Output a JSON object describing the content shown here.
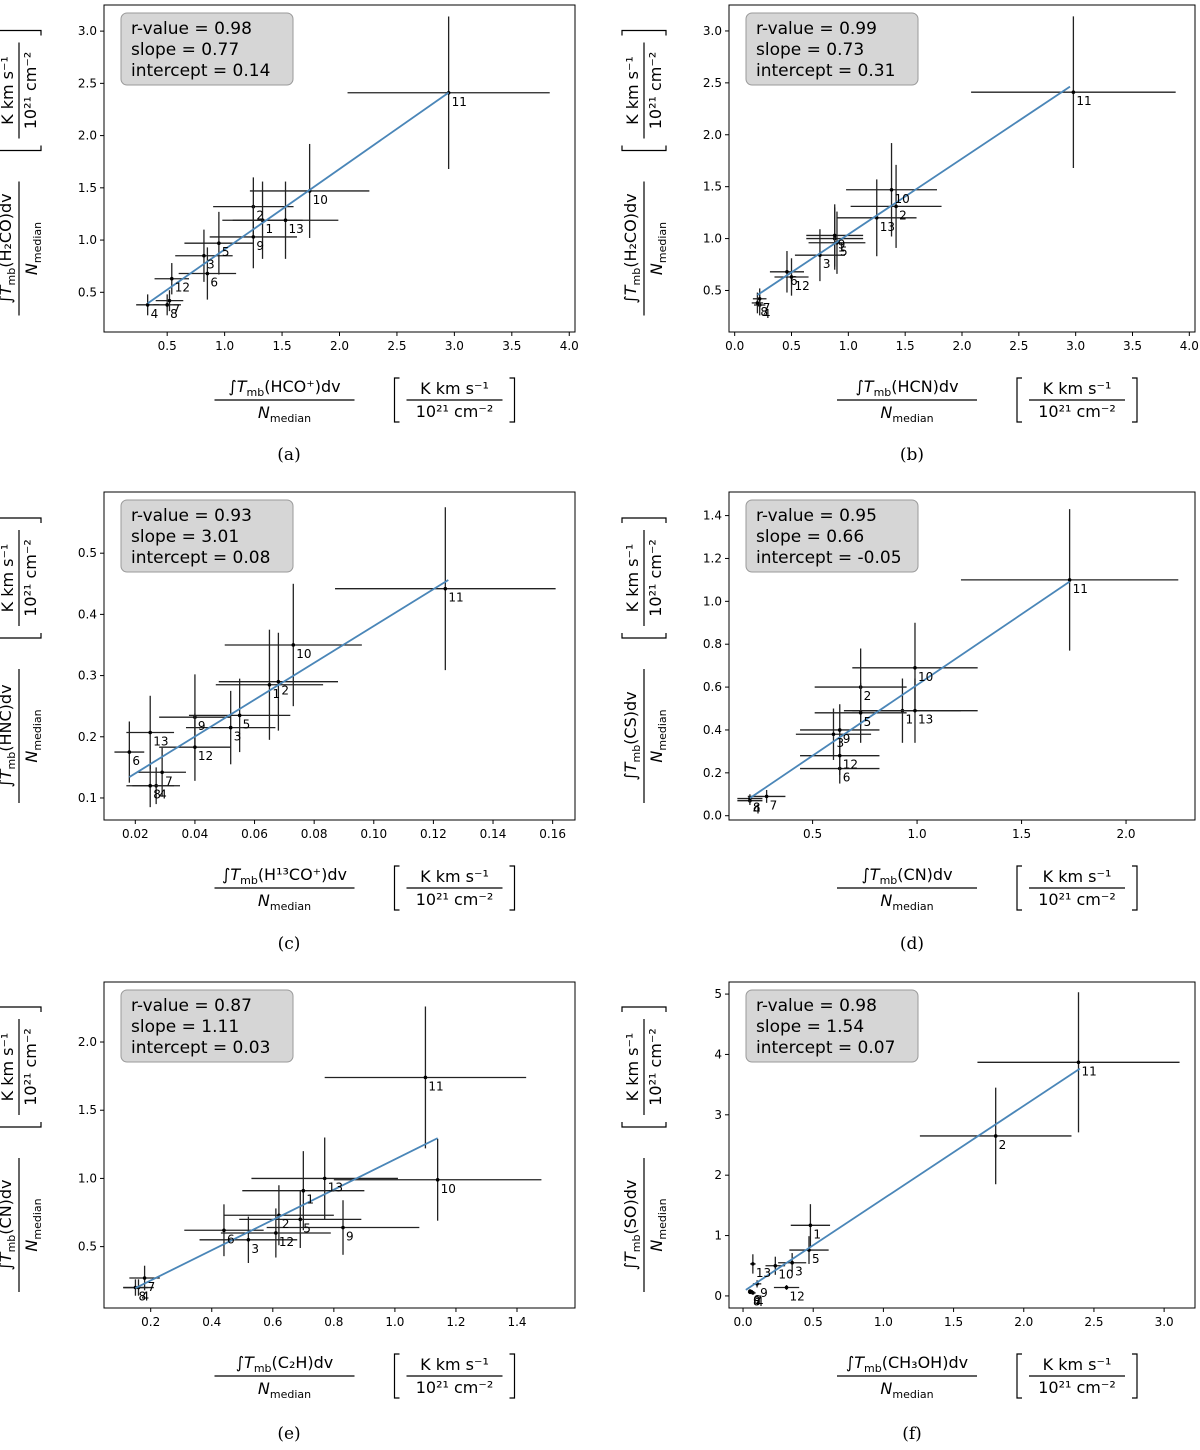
{
  "units_top": "K km s⁻¹",
  "units_bottom": "10²¹ cm⁻²",
  "y_denominator": "N",
  "y_denominator_sub": "median",
  "chart_data": [
    {
      "type": "scatter",
      "caption": "(a)",
      "stats": {
        "r": "r-value =  0.98",
        "slope": "slope = 0.77",
        "intercept": "intercept = 0.14"
      },
      "xlabel": {
        "pre": "∫T",
        "sub": "mb",
        "species": "(HCO⁺)dv"
      },
      "ylabel": {
        "pre": "∫T",
        "sub": "mb",
        "species": "(H₂CO)dv"
      },
      "xlim": [
        -0.05,
        4.05
      ],
      "ylim": [
        0.12,
        3.25
      ],
      "xticks": [
        0.5,
        1.0,
        1.5,
        2.0,
        2.5,
        3.0,
        3.5,
        4.0
      ],
      "xtick_labels": [
        "0.5",
        "1.0",
        "1.5",
        "2.0",
        "2.5",
        "3.0",
        "3.5",
        "4.0"
      ],
      "yticks": [
        0.5,
        1.0,
        1.5,
        2.0,
        2.5,
        3.0
      ],
      "ytick_labels": [
        "0.5",
        "1.0",
        "1.5",
        "2.0",
        "2.5",
        "3.0"
      ],
      "fit": {
        "slope": 0.77,
        "intercept": 0.14,
        "x_range": [
          0.33,
          2.95
        ]
      },
      "points": [
        {
          "label": "1",
          "x": 1.33,
          "y": 1.19,
          "xerr": 0.35,
          "yerr": 0.37
        },
        {
          "label": "2",
          "x": 1.25,
          "y": 1.32,
          "xerr": 0.35,
          "yerr": 0.28
        },
        {
          "label": "3",
          "x": 0.82,
          "y": 0.85,
          "xerr": 0.25,
          "yerr": 0.25
        },
        {
          "label": "4",
          "x": 0.33,
          "y": 0.38,
          "xerr": 0.1,
          "yerr": 0.1
        },
        {
          "label": "5",
          "x": 0.95,
          "y": 0.97,
          "xerr": 0.3,
          "yerr": 0.3
        },
        {
          "label": "6",
          "x": 0.85,
          "y": 0.68,
          "xerr": 0.25,
          "yerr": 0.25
        },
        {
          "label": "7",
          "x": 0.52,
          "y": 0.42,
          "xerr": 0.12,
          "yerr": 0.1
        },
        {
          "label": "8",
          "x": 0.5,
          "y": 0.38,
          "xerr": 0.12,
          "yerr": 0.1
        },
        {
          "label": "9",
          "x": 1.25,
          "y": 1.03,
          "xerr": 0.38,
          "yerr": 0.3
        },
        {
          "label": "10",
          "x": 1.74,
          "y": 1.47,
          "xerr": 0.52,
          "yerr": 0.45
        },
        {
          "label": "11",
          "x": 2.95,
          "y": 2.41,
          "xerr": 0.88,
          "yerr": 0.73
        },
        {
          "label": "12",
          "x": 0.54,
          "y": 0.63,
          "xerr": 0.15,
          "yerr": 0.15
        },
        {
          "label": "13",
          "x": 1.53,
          "y": 1.19,
          "xerr": 0.46,
          "yerr": 0.37
        }
      ]
    },
    {
      "type": "scatter",
      "caption": "(b)",
      "stats": {
        "r": "r-value =  0.99",
        "slope": "slope = 0.73",
        "intercept": "intercept = 0.31"
      },
      "xlabel": {
        "pre": "∫T",
        "sub": "mb",
        "species": "(HCN)dv"
      },
      "ylabel": {
        "pre": "∫T",
        "sub": "mb",
        "species": "(H₂CO)dv"
      },
      "xlim": [
        -0.05,
        4.05
      ],
      "ylim": [
        0.1,
        3.25
      ],
      "xticks": [
        0.0,
        0.5,
        1.0,
        1.5,
        2.0,
        2.5,
        3.0,
        3.5,
        4.0
      ],
      "xtick_labels": [
        "0.0",
        "0.5",
        "1.0",
        "1.5",
        "2.0",
        "2.5",
        "3.0",
        "3.5",
        "4.0"
      ],
      "yticks": [
        0.5,
        1.0,
        1.5,
        2.0,
        2.5,
        3.0
      ],
      "ytick_labels": [
        "0.5",
        "1.0",
        "1.5",
        "2.0",
        "2.5",
        "3.0"
      ],
      "fit": {
        "slope": 0.73,
        "intercept": 0.31,
        "x_range": [
          0.2,
          2.95
        ]
      },
      "points": [
        {
          "label": "1",
          "x": 0.88,
          "y": 1.0,
          "xerr": 0.25,
          "yerr": 0.3
        },
        {
          "label": "2",
          "x": 1.42,
          "y": 1.31,
          "xerr": 0.4,
          "yerr": 0.4
        },
        {
          "label": "3",
          "x": 0.75,
          "y": 0.84,
          "xerr": 0.22,
          "yerr": 0.25
        },
        {
          "label": "4",
          "x": 0.22,
          "y": 0.36,
          "xerr": 0.05,
          "yerr": 0.1
        },
        {
          "label": "5",
          "x": 0.9,
          "y": 0.96,
          "xerr": 0.25,
          "yerr": 0.3
        },
        {
          "label": "6",
          "x": 0.46,
          "y": 0.68,
          "xerr": 0.15,
          "yerr": 0.2
        },
        {
          "label": "7",
          "x": 0.22,
          "y": 0.42,
          "xerr": 0.06,
          "yerr": 0.1
        },
        {
          "label": "8",
          "x": 0.2,
          "y": 0.38,
          "xerr": 0.05,
          "yerr": 0.1
        },
        {
          "label": "9",
          "x": 0.88,
          "y": 1.03,
          "xerr": 0.25,
          "yerr": 0.3
        },
        {
          "label": "10",
          "x": 1.38,
          "y": 1.47,
          "xerr": 0.4,
          "yerr": 0.45
        },
        {
          "label": "11",
          "x": 2.98,
          "y": 2.41,
          "xerr": 0.9,
          "yerr": 0.73
        },
        {
          "label": "12",
          "x": 0.5,
          "y": 0.63,
          "xerr": 0.15,
          "yerr": 0.18
        },
        {
          "label": "13",
          "x": 1.25,
          "y": 1.2,
          "xerr": 0.35,
          "yerr": 0.37
        }
      ]
    },
    {
      "type": "scatter",
      "caption": "(c)",
      "stats": {
        "r": "r-value =  0.93",
        "slope": "slope = 3.01",
        "intercept": "intercept = 0.08"
      },
      "xlabel": {
        "pre": "∫T",
        "sub": "mb",
        "species": "(H¹³CO⁺)dv"
      },
      "ylabel": {
        "pre": "∫T",
        "sub": "mb",
        "species": "(HNC)dv"
      },
      "xlim": [
        0.0095,
        0.1675
      ],
      "ylim": [
        0.064,
        0.6
      ],
      "xticks": [
        0.02,
        0.04,
        0.06,
        0.08,
        0.1,
        0.12,
        0.14,
        0.16
      ],
      "xtick_labels": [
        "0.02",
        "0.04",
        "0.06",
        "0.08",
        "0.10",
        "0.12",
        "0.14",
        "0.16"
      ],
      "yticks": [
        0.1,
        0.2,
        0.3,
        0.4,
        0.5
      ],
      "ytick_labels": [
        "0.1",
        "0.2",
        "0.3",
        "0.4",
        "0.5"
      ],
      "fit": {
        "slope": 3.01,
        "intercept": 0.08,
        "x_range": [
          0.018,
          0.125
        ]
      },
      "points": [
        {
          "label": "1",
          "x": 0.065,
          "y": 0.285,
          "xerr": 0.018,
          "yerr": 0.09
        },
        {
          "label": "2",
          "x": 0.068,
          "y": 0.29,
          "xerr": 0.02,
          "yerr": 0.08
        },
        {
          "label": "3",
          "x": 0.052,
          "y": 0.215,
          "xerr": 0.015,
          "yerr": 0.06
        },
        {
          "label": "4",
          "x": 0.027,
          "y": 0.12,
          "xerr": 0.008,
          "yerr": 0.03
        },
        {
          "label": "5",
          "x": 0.055,
          "y": 0.235,
          "xerr": 0.017,
          "yerr": 0.06
        },
        {
          "label": "6",
          "x": 0.018,
          "y": 0.175,
          "xerr": 0.005,
          "yerr": 0.05
        },
        {
          "label": "7",
          "x": 0.029,
          "y": 0.142,
          "xerr": 0.008,
          "yerr": 0.04
        },
        {
          "label": "8",
          "x": 0.025,
          "y": 0.12,
          "xerr": 0.008,
          "yerr": 0.035
        },
        {
          "label": "9",
          "x": 0.04,
          "y": 0.232,
          "xerr": 0.012,
          "yerr": 0.07
        },
        {
          "label": "10",
          "x": 0.073,
          "y": 0.35,
          "xerr": 0.023,
          "yerr": 0.1
        },
        {
          "label": "11",
          "x": 0.124,
          "y": 0.442,
          "xerr": 0.037,
          "yerr": 0.133
        },
        {
          "label": "12",
          "x": 0.04,
          "y": 0.183,
          "xerr": 0.012,
          "yerr": 0.055
        },
        {
          "label": "13",
          "x": 0.025,
          "y": 0.207,
          "xerr": 0.008,
          "yerr": 0.06
        }
      ]
    },
    {
      "type": "scatter",
      "caption": "(d)",
      "stats": {
        "r": "r-value =  0.95",
        "slope": "slope = 0.66",
        "intercept": "intercept = -0.05"
      },
      "xlabel": {
        "pre": "∫T",
        "sub": "mb",
        "species": "(CN)dv"
      },
      "ylabel": {
        "pre": "∫T",
        "sub": "mb",
        "species": "(CS)dv"
      },
      "xlim": [
        0.1,
        2.33
      ],
      "ylim": [
        -0.02,
        1.51
      ],
      "xticks": [
        0.5,
        1.0,
        1.5,
        2.0
      ],
      "xtick_labels": [
        "0.5",
        "1.0",
        "1.5",
        "2.0"
      ],
      "yticks": [
        0.0,
        0.2,
        0.4,
        0.6,
        0.8,
        1.0,
        1.2,
        1.4
      ],
      "ytick_labels": [
        "0.0",
        "0.2",
        "0.4",
        "0.6",
        "0.8",
        "1.0",
        "1.2",
        "1.4"
      ],
      "fit": {
        "slope": 0.66,
        "intercept": -0.05,
        "x_range": [
          0.2,
          1.73
        ]
      },
      "points": [
        {
          "label": "1",
          "x": 0.93,
          "y": 0.49,
          "xerr": 0.28,
          "yerr": 0.15
        },
        {
          "label": "2",
          "x": 0.73,
          "y": 0.6,
          "xerr": 0.22,
          "yerr": 0.18
        },
        {
          "label": "3",
          "x": 0.6,
          "y": 0.38,
          "xerr": 0.18,
          "yerr": 0.12
        },
        {
          "label": "4",
          "x": 0.2,
          "y": 0.07,
          "xerr": 0.06,
          "yerr": 0.02
        },
        {
          "label": "5",
          "x": 0.73,
          "y": 0.48,
          "xerr": 0.22,
          "yerr": 0.14
        },
        {
          "label": "6",
          "x": 0.63,
          "y": 0.22,
          "xerr": 0.19,
          "yerr": 0.07
        },
        {
          "label": "7",
          "x": 0.28,
          "y": 0.09,
          "xerr": 0.09,
          "yerr": 0.03
        },
        {
          "label": "8",
          "x": 0.2,
          "y": 0.08,
          "xerr": 0.06,
          "yerr": 0.02
        },
        {
          "label": "9",
          "x": 0.63,
          "y": 0.4,
          "xerr": 0.19,
          "yerr": 0.12
        },
        {
          "label": "10",
          "x": 0.99,
          "y": 0.69,
          "xerr": 0.3,
          "yerr": 0.21
        },
        {
          "label": "11",
          "x": 1.73,
          "y": 1.1,
          "xerr": 0.52,
          "yerr": 0.33
        },
        {
          "label": "12",
          "x": 0.63,
          "y": 0.28,
          "xerr": 0.19,
          "yerr": 0.09
        },
        {
          "label": "13",
          "x": 0.99,
          "y": 0.49,
          "xerr": 0.3,
          "yerr": 0.15
        }
      ]
    },
    {
      "type": "scatter",
      "caption": "(e)",
      "stats": {
        "r": "r-value =  0.87",
        "slope": "slope = 1.11",
        "intercept": "intercept = 0.03"
      },
      "xlabel": {
        "pre": "∫T",
        "sub": "mb",
        "species": "(C₂H)dv"
      },
      "ylabel": {
        "pre": "∫T",
        "sub": "mb",
        "species": "(CN)dv"
      },
      "xlim": [
        0.047,
        1.59
      ],
      "ylim": [
        0.05,
        2.44
      ],
      "xticks": [
        0.2,
        0.4,
        0.6,
        0.8,
        1.0,
        1.2,
        1.4
      ],
      "xtick_labels": [
        "0.2",
        "0.4",
        "0.6",
        "0.8",
        "1.0",
        "1.2",
        "1.4"
      ],
      "yticks": [
        0.5,
        1.0,
        1.5,
        2.0
      ],
      "ytick_labels": [
        "0.5",
        "1.0",
        "1.5",
        "2.0"
      ],
      "fit": {
        "slope": 1.11,
        "intercept": 0.03,
        "x_range": [
          0.15,
          1.14
        ]
      },
      "points": [
        {
          "label": "1",
          "x": 0.7,
          "y": 0.91,
          "xerr": 0.2,
          "yerr": 0.29
        },
        {
          "label": "2",
          "x": 0.62,
          "y": 0.73,
          "xerr": 0.18,
          "yerr": 0.22
        },
        {
          "label": "3",
          "x": 0.52,
          "y": 0.55,
          "xerr": 0.16,
          "yerr": 0.17
        },
        {
          "label": "4",
          "x": 0.16,
          "y": 0.2,
          "xerr": 0.05,
          "yerr": 0.06
        },
        {
          "label": "5",
          "x": 0.69,
          "y": 0.7,
          "xerr": 0.2,
          "yerr": 0.21
        },
        {
          "label": "6",
          "x": 0.44,
          "y": 0.62,
          "xerr": 0.13,
          "yerr": 0.19
        },
        {
          "label": "7",
          "x": 0.18,
          "y": 0.27,
          "xerr": 0.05,
          "yerr": 0.09
        },
        {
          "label": "8",
          "x": 0.15,
          "y": 0.2,
          "xerr": 0.04,
          "yerr": 0.06
        },
        {
          "label": "9",
          "x": 0.83,
          "y": 0.64,
          "xerr": 0.25,
          "yerr": 0.2
        },
        {
          "label": "10",
          "x": 1.14,
          "y": 0.99,
          "xerr": 0.34,
          "yerr": 0.3
        },
        {
          "label": "11",
          "x": 1.1,
          "y": 1.74,
          "xerr": 0.33,
          "yerr": 0.52
        },
        {
          "label": "12",
          "x": 0.61,
          "y": 0.6,
          "xerr": 0.18,
          "yerr": 0.18
        },
        {
          "label": "13",
          "x": 0.77,
          "y": 1.0,
          "xerr": 0.24,
          "yerr": 0.3
        }
      ]
    },
    {
      "type": "scatter",
      "caption": "(f)",
      "stats": {
        "r": "r-value =  0.98",
        "slope": "slope = 1.54",
        "intercept": "intercept = 0.07"
      },
      "xlabel": {
        "pre": "∫T",
        "sub": "mb",
        "species": "(CH₃OH)dv"
      },
      "ylabel": {
        "pre": "∫T",
        "sub": "mb",
        "species": "(SO)dv"
      },
      "xlim": [
        -0.1,
        3.22
      ],
      "ylim": [
        -0.2,
        5.2
      ],
      "xticks": [
        0.0,
        0.5,
        1.0,
        1.5,
        2.0,
        2.5,
        3.0
      ],
      "xtick_labels": [
        "0.0",
        "0.5",
        "1.0",
        "1.5",
        "2.0",
        "2.5",
        "3.0"
      ],
      "yticks": [
        0,
        1,
        2,
        3,
        4,
        5
      ],
      "ytick_labels": [
        "0",
        "1",
        "2",
        "3",
        "4",
        "5"
      ],
      "fit": {
        "slope": 1.54,
        "intercept": 0.07,
        "x_range": [
          0.02,
          2.4
        ]
      },
      "points": [
        {
          "label": "1",
          "x": 0.48,
          "y": 1.17,
          "xerr": 0.14,
          "yerr": 0.35
        },
        {
          "label": "2",
          "x": 1.8,
          "y": 2.65,
          "xerr": 0.54,
          "yerr": 0.8
        },
        {
          "label": "3",
          "x": 0.35,
          "y": 0.55,
          "xerr": 0.1,
          "yerr": 0.16
        },
        {
          "label": "4",
          "x": 0.07,
          "y": 0.05,
          "xerr": 0.02,
          "yerr": 0.02
        },
        {
          "label": "5",
          "x": 0.47,
          "y": 0.76,
          "xerr": 0.14,
          "yerr": 0.23
        },
        {
          "label": "6",
          "x": 0.05,
          "y": 0.08,
          "xerr": 0.015,
          "yerr": 0.02
        },
        {
          "label": "7",
          "x": 0.06,
          "y": 0.07,
          "xerr": 0.02,
          "yerr": 0.02
        },
        {
          "label": "8",
          "x": 0.05,
          "y": 0.06,
          "xerr": 0.015,
          "yerr": 0.02
        },
        {
          "label": "9",
          "x": 0.1,
          "y": 0.2,
          "xerr": 0.03,
          "yerr": 0.06
        },
        {
          "label": "10",
          "x": 0.23,
          "y": 0.5,
          "xerr": 0.07,
          "yerr": 0.15
        },
        {
          "label": "11",
          "x": 2.39,
          "y": 3.87,
          "xerr": 0.72,
          "yerr": 1.16
        },
        {
          "label": "12",
          "x": 0.31,
          "y": 0.14,
          "xerr": 0.09,
          "yerr": 0.04
        },
        {
          "label": "13",
          "x": 0.07,
          "y": 0.53,
          "xerr": 0.02,
          "yerr": 0.16
        }
      ]
    }
  ]
}
